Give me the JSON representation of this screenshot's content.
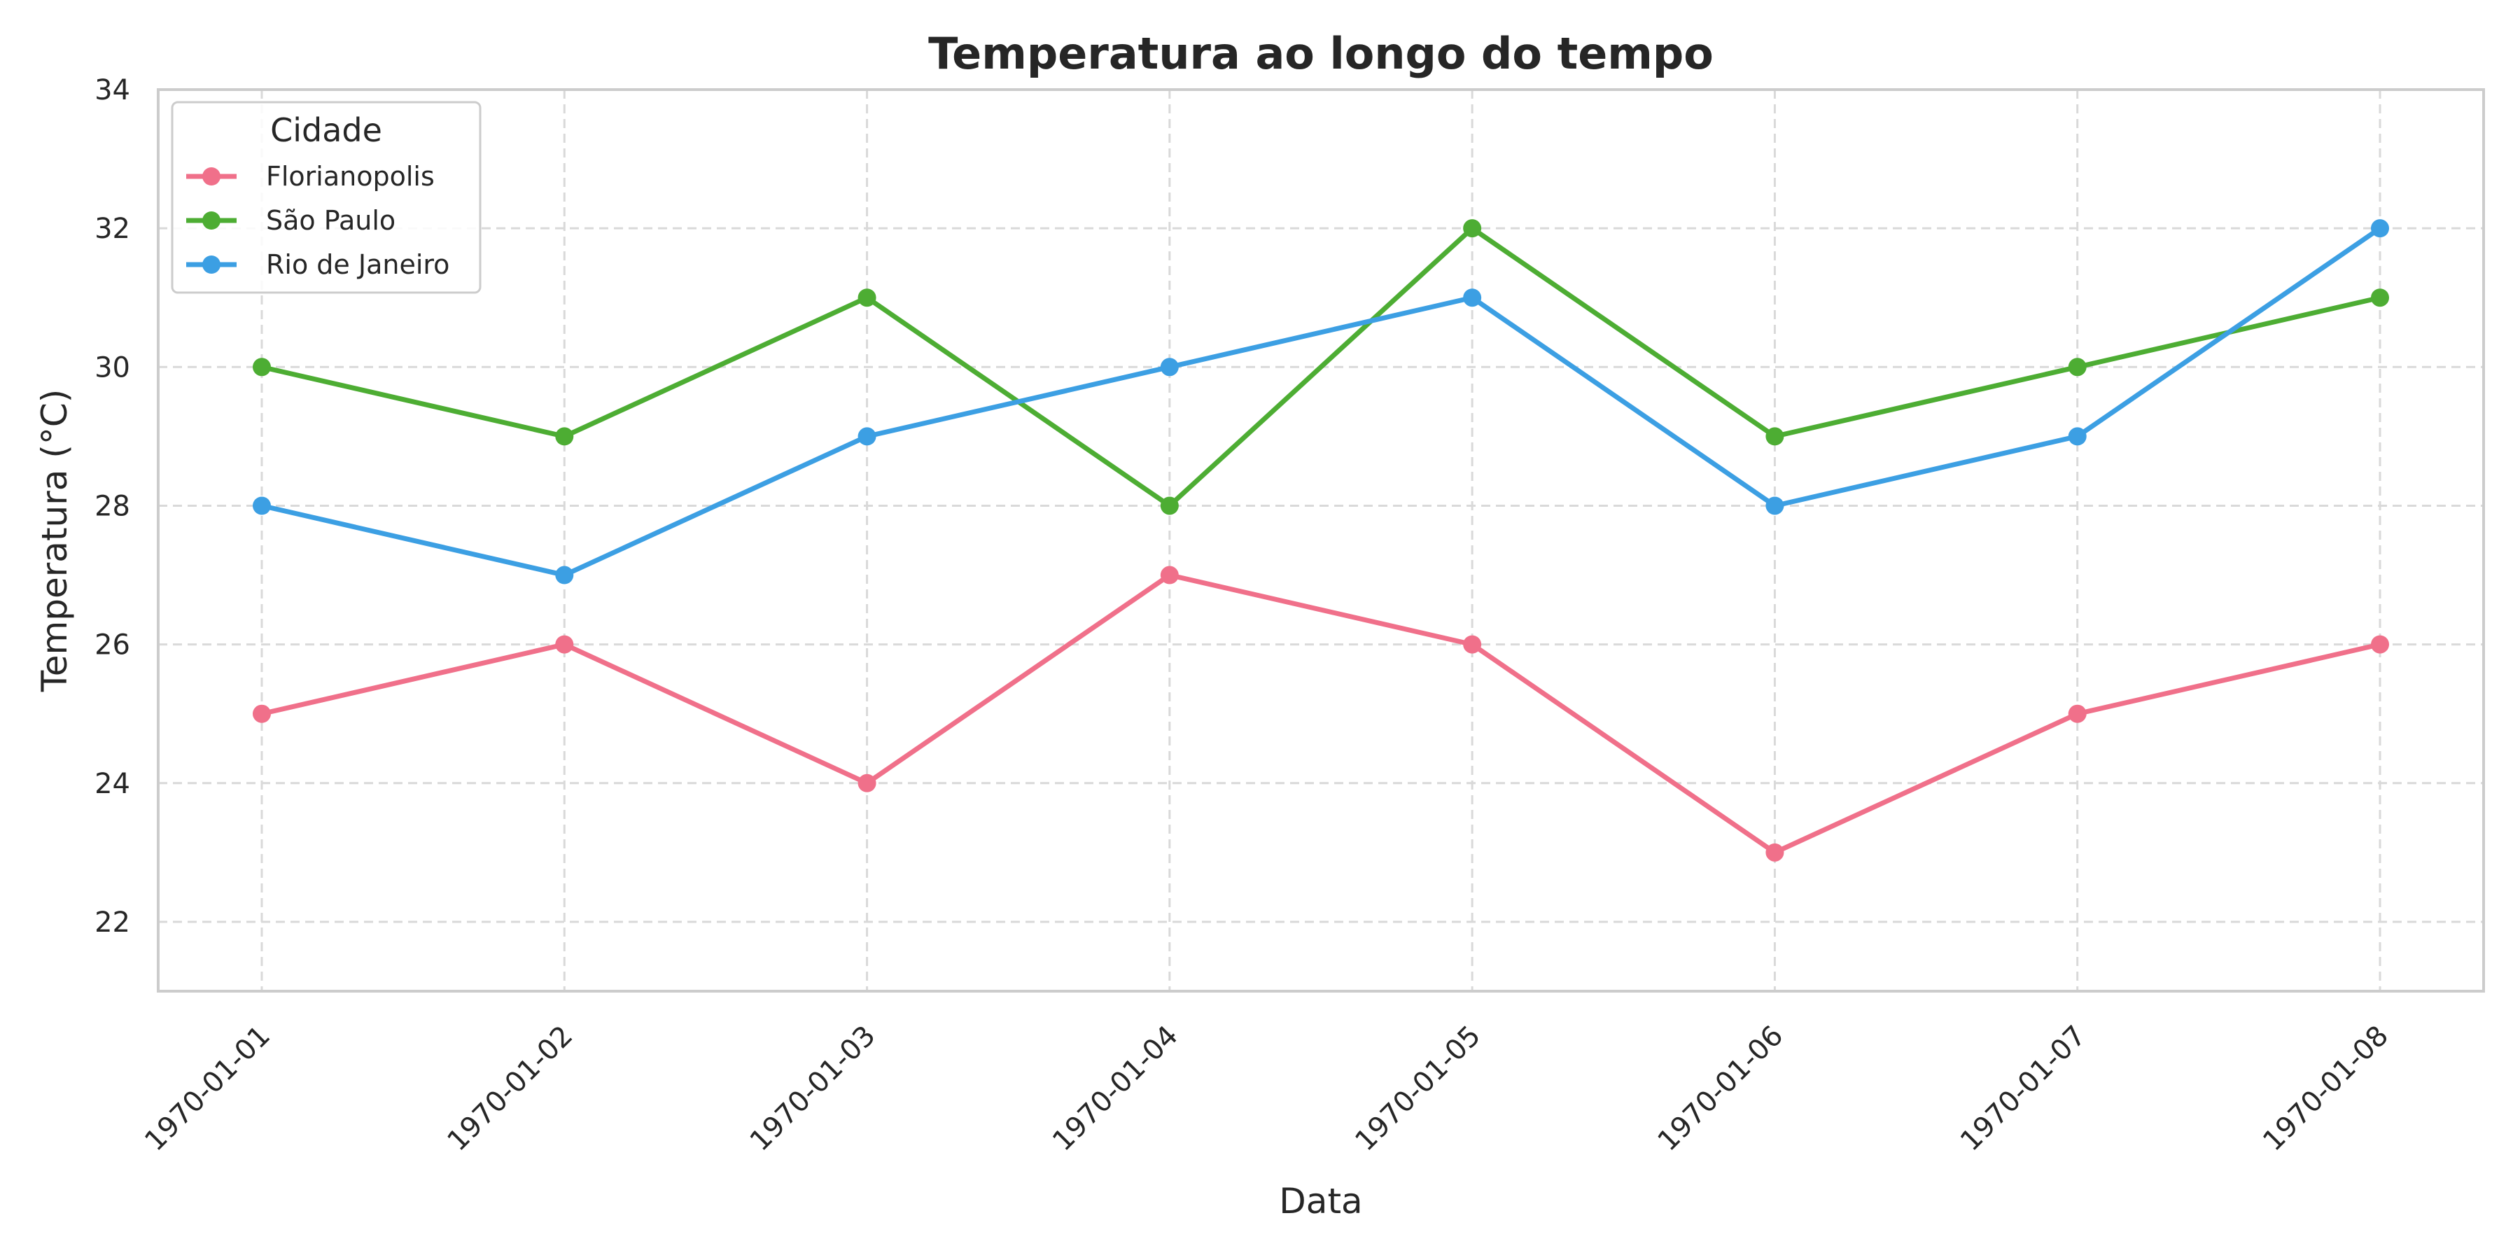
{
  "chart_data": {
    "type": "line",
    "title": "Temperatura ao longo do tempo",
    "xlabel": "Data",
    "ylabel": "Temperatura (°C)",
    "categories": [
      "1970-01-01",
      "1970-01-02",
      "1970-01-03",
      "1970-01-04",
      "1970-01-05",
      "1970-01-06",
      "1970-01-07",
      "1970-01-08"
    ],
    "ylim": [
      21,
      34
    ],
    "yticks": [
      22,
      24,
      26,
      28,
      30,
      32,
      34
    ],
    "grid": true,
    "legend": {
      "title": "Cidade",
      "placement": "top-left"
    },
    "series": [
      {
        "name": "Florianopolis",
        "color": "#f0708a",
        "values": [
          25,
          26,
          24,
          27,
          26,
          23,
          25,
          26
        ]
      },
      {
        "name": "São Paulo",
        "color": "#4dad33",
        "values": [
          30,
          29,
          31,
          28,
          32,
          29,
          30,
          31
        ]
      },
      {
        "name": "Rio de Janeiro",
        "color": "#3c9fe3",
        "values": [
          28,
          27,
          29,
          30,
          31,
          28,
          29,
          32
        ]
      }
    ]
  }
}
